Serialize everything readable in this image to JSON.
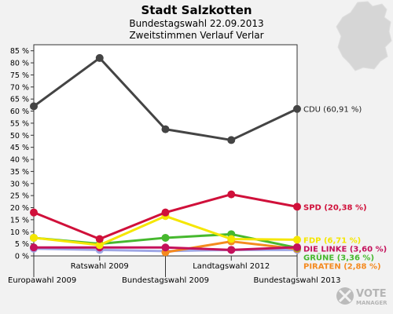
{
  "chart_data": {
    "type": "line",
    "title": "Stadt Salzkotten",
    "subtitle": "Bundestagswahl 22.09.2013",
    "subtitle2": "Zweitstimmen Verlauf Verlar",
    "categories": [
      "Europawahl 2009",
      "Ratswahl 2009",
      "Bundestagswahl 2009",
      "Landtagswahl 2012",
      "Bundestagswahl 2013"
    ],
    "y_ticks": [
      "0 %",
      "5 %",
      "10 %",
      "15 %",
      "20 %",
      "25 %",
      "30 %",
      "35 %",
      "40 %",
      "45 %",
      "50 %",
      "55 %",
      "60 %",
      "65 %",
      "70 %",
      "75 %",
      "80 %",
      "85 %"
    ],
    "ylim": [
      0,
      87.5
    ],
    "grid": false,
    "legend": "right end labels",
    "series": [
      {
        "name": "CDU",
        "label": "CDU (60,91 %)",
        "color": "#444444",
        "text_color": "#222222",
        "values": [
          62.0,
          82.0,
          52.5,
          48.0,
          60.91
        ]
      },
      {
        "name": "SPD",
        "label": "SPD (20,38 %)",
        "color": "#d0103a",
        "text_color": "#d0103a",
        "values": [
          18.0,
          7.0,
          18.0,
          25.5,
          20.38
        ]
      },
      {
        "name": "FDP",
        "label": "FDP (6,71 %)",
        "color": "#f5e600",
        "text_color": "#f5e600",
        "values": [
          7.5,
          4.5,
          16.5,
          7.0,
          6.71
        ]
      },
      {
        "name": "DIE LINKE",
        "label": "DIE LINKE (3,60 %)",
        "color": "#c4115b",
        "text_color": "#c4115b",
        "values": [
          3.5,
          3.5,
          3.5,
          2.5,
          3.6
        ]
      },
      {
        "name": "GRÜNE",
        "label": "GRÜNE (3,36 %)",
        "color": "#46b82e",
        "text_color": "#46b82e",
        "values": [
          7.5,
          5.0,
          7.5,
          9.0,
          3.36
        ]
      },
      {
        "name": "PIRATEN",
        "label": "PIRATEN (2,88 %)",
        "color": "#f48a1f",
        "text_color": "#f48a1f",
        "values": [
          null,
          null,
          1.5,
          6.0,
          2.88
        ]
      },
      {
        "name": "Sonstige",
        "label": "",
        "color": "#9fa8e6",
        "text_color": "#9fa8e6",
        "values": [
          3.0,
          2.5,
          2.0,
          2.5,
          2.5
        ]
      }
    ]
  },
  "branding": {
    "logo_line1": "VOTE",
    "logo_line2": "MANAGER"
  }
}
